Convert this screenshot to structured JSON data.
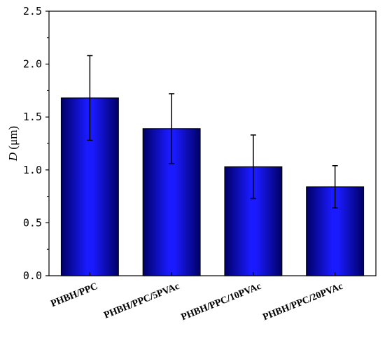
{
  "chart_data": {
    "type": "bar",
    "categories": [
      "PHBH/PPC",
      "PHBH/PPC/5PVAc",
      "PHBH/PPC/10PVAc",
      "PHBH/PPC/20PVAc"
    ],
    "values": [
      1.68,
      1.39,
      1.03,
      0.84
    ],
    "error_bars": [
      0.4,
      0.33,
      0.3,
      0.2
    ],
    "ylabel_symbol": "D",
    "ylabel_unit": " (μm)",
    "xlabel": "",
    "title": "",
    "ylim": [
      0,
      2.5
    ],
    "yticks": [
      "0.0",
      "0.5",
      "1.0",
      "1.5",
      "2.0",
      "2.5"
    ],
    "grid": false,
    "legend": "none",
    "bar_color_dark": "#000066",
    "bar_color_bright": "#1a1aff",
    "error_color": "#000000"
  }
}
